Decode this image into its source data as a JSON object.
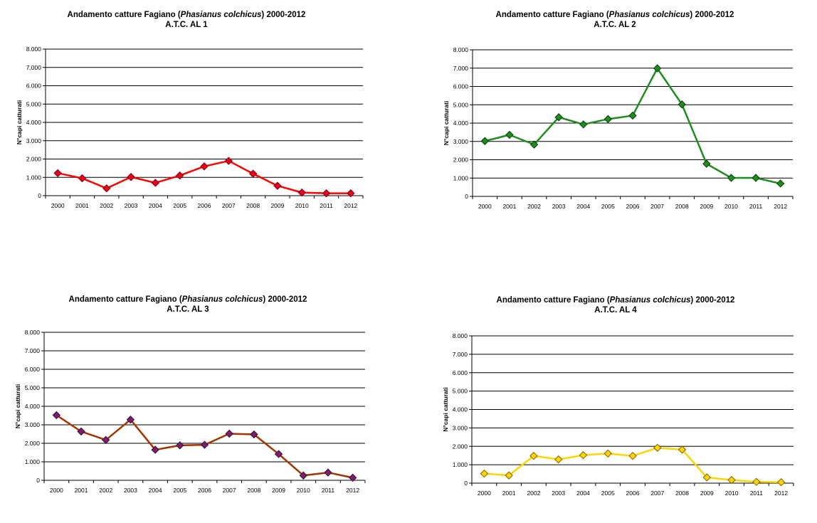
{
  "chart_data": [
    {
      "type": "line",
      "title_prefix": "Andamento catture Fagiano (",
      "title_species": "Phasianus colchicus",
      "title_suffix": ") 2000-2012",
      "subtitle": "A.T.C. AL 1",
      "ylabel": "N°capi catturati",
      "xlabel": "",
      "categories": [
        "2000",
        "2001",
        "2002",
        "2003",
        "2004",
        "2005",
        "2006",
        "2007",
        "2008",
        "2009",
        "2010",
        "2011",
        "2012"
      ],
      "yticks": [
        "0",
        "1.000",
        "2.000",
        "3.000",
        "4.000",
        "5.000",
        "6.000",
        "7.000",
        "8.000"
      ],
      "ylim": [
        0,
        8000
      ],
      "grid": true,
      "legend": "none",
      "series": [
        {
          "values": [
            1230,
            950,
            400,
            1020,
            700,
            1100,
            1600,
            1900,
            1200,
            540,
            170,
            130,
            130
          ],
          "line_color": "#ff0000",
          "marker_color": "#e8001c",
          "marker_edge": "#7a0010"
        }
      ]
    },
    {
      "type": "line",
      "title_prefix": "Andamento catture Fagiano (",
      "title_species": "Phasianus colchicus",
      "title_suffix": ") 2000-2012",
      "subtitle": "A.T.C. AL 2",
      "ylabel": "N°capi catturati",
      "xlabel": "",
      "categories": [
        "2000",
        "2001",
        "2002",
        "2003",
        "2004",
        "2005",
        "2006",
        "2007",
        "2008",
        "2009",
        "2010",
        "2011",
        "2012"
      ],
      "yticks": [
        "0",
        "1.000",
        "2.000",
        "3.000",
        "4.000",
        "5.000",
        "6.000",
        "7.000",
        "8.000"
      ],
      "ylim": [
        0,
        8000
      ],
      "grid": true,
      "legend": "none",
      "series": [
        {
          "values": [
            3020,
            3360,
            2830,
            4320,
            3930,
            4220,
            4410,
            6990,
            5020,
            1780,
            1010,
            1010,
            700
          ],
          "line_color": "#1e8c1e",
          "marker_color": "#1e8c1e",
          "marker_edge": "#0b3d0b"
        }
      ]
    },
    {
      "type": "line",
      "title_prefix": "Andamento catture Fagiano (",
      "title_species": "Phasianus colchicus",
      "title_suffix": ") 2000-2012",
      "subtitle": "A.T.C. AL 3",
      "ylabel": "N°capi catturati",
      "xlabel": "",
      "categories": [
        "2000",
        "2001",
        "2002",
        "2003",
        "2004",
        "2005",
        "2006",
        "2007",
        "2008",
        "2009",
        "2010",
        "2011",
        "2012"
      ],
      "yticks": [
        "0",
        "1.000",
        "2.000",
        "3.000",
        "4.000",
        "5.000",
        "6.000",
        "7.000",
        "8.000"
      ],
      "ylim": [
        0,
        8000
      ],
      "grid": true,
      "legend": "none",
      "series": [
        {
          "values": [
            3520,
            2640,
            2180,
            3280,
            1650,
            1890,
            1920,
            2520,
            2480,
            1420,
            260,
            420,
            140
          ],
          "line_color": "#a33300",
          "marker_color": "#7a1f6a",
          "marker_edge": "#3a0f33"
        }
      ]
    },
    {
      "type": "line",
      "title_prefix": "Andamento catture Fagiano (",
      "title_species": "Phasianus colchicus",
      "title_suffix": ") 2000-2012",
      "subtitle": "A.T.C. AL 4",
      "ylabel": "N°capi catturati",
      "xlabel": "",
      "categories": [
        "2000",
        "2001",
        "2002",
        "2003",
        "2004",
        "2005",
        "2006",
        "2007",
        "2008",
        "2009",
        "2010",
        "2011",
        "2012"
      ],
      "yticks": [
        "0",
        "1.000",
        "2.000",
        "3.000",
        "4.000",
        "5.000",
        "6.000",
        "7.000",
        "8.000"
      ],
      "ylim": [
        0,
        8000
      ],
      "grid": true,
      "legend": "none",
      "series": [
        {
          "values": [
            520,
            420,
            1480,
            1290,
            1520,
            1610,
            1480,
            1920,
            1820,
            310,
            170,
            70,
            50
          ],
          "line_color": "#ffd400",
          "marker_color": "#ffd400",
          "marker_edge": "#7a6200"
        }
      ]
    }
  ]
}
